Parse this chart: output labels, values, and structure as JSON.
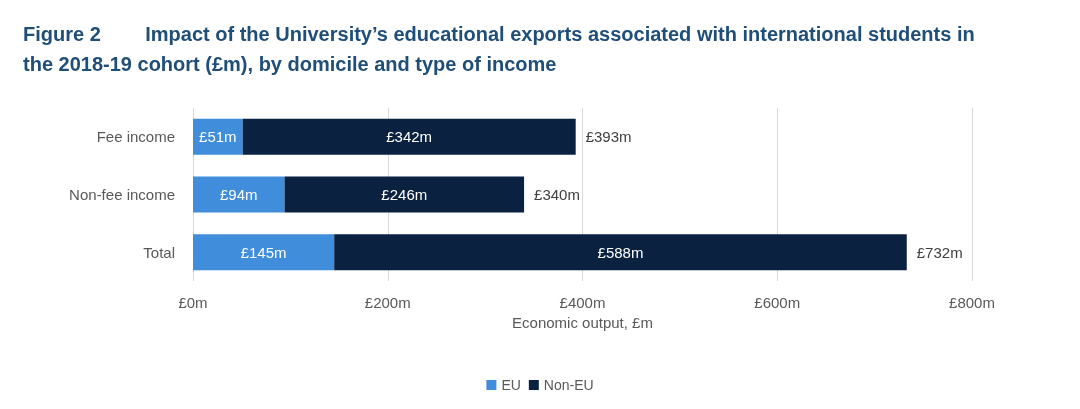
{
  "chart_data": {
    "type": "bar",
    "orientation": "horizontal",
    "stacked": true,
    "title": "Figure 2        Impact of the University’s educational exports associated with international students in the 2018-19 cohort (£m), by domicile and type of income",
    "categories": [
      "Fee income",
      "Non-fee income",
      "Total"
    ],
    "series": [
      {
        "name": "EU",
        "color": "#3f8ddb",
        "values": [
          51,
          94,
          145
        ],
        "value_labels": [
          "£51m",
          "£94m",
          "£145m"
        ]
      },
      {
        "name": "Non-EU",
        "color": "#0a2240",
        "values": [
          342,
          246,
          588
        ],
        "value_labels": [
          "£342m",
          "£246m",
          "£588m"
        ]
      }
    ],
    "totals": [
      "£393m",
      "£340m",
      "£732m"
    ],
    "xlabel": "Economic output, £m",
    "xlim": [
      0,
      800
    ],
    "xticks": [
      {
        "value": 0,
        "label": "£0m"
      },
      {
        "value": 200,
        "label": "£200m"
      },
      {
        "value": 400,
        "label": "£400m"
      },
      {
        "value": 600,
        "label": "£600m"
      },
      {
        "value": 800,
        "label": "£800m"
      }
    ],
    "grid": "x",
    "legend": "bottom"
  }
}
